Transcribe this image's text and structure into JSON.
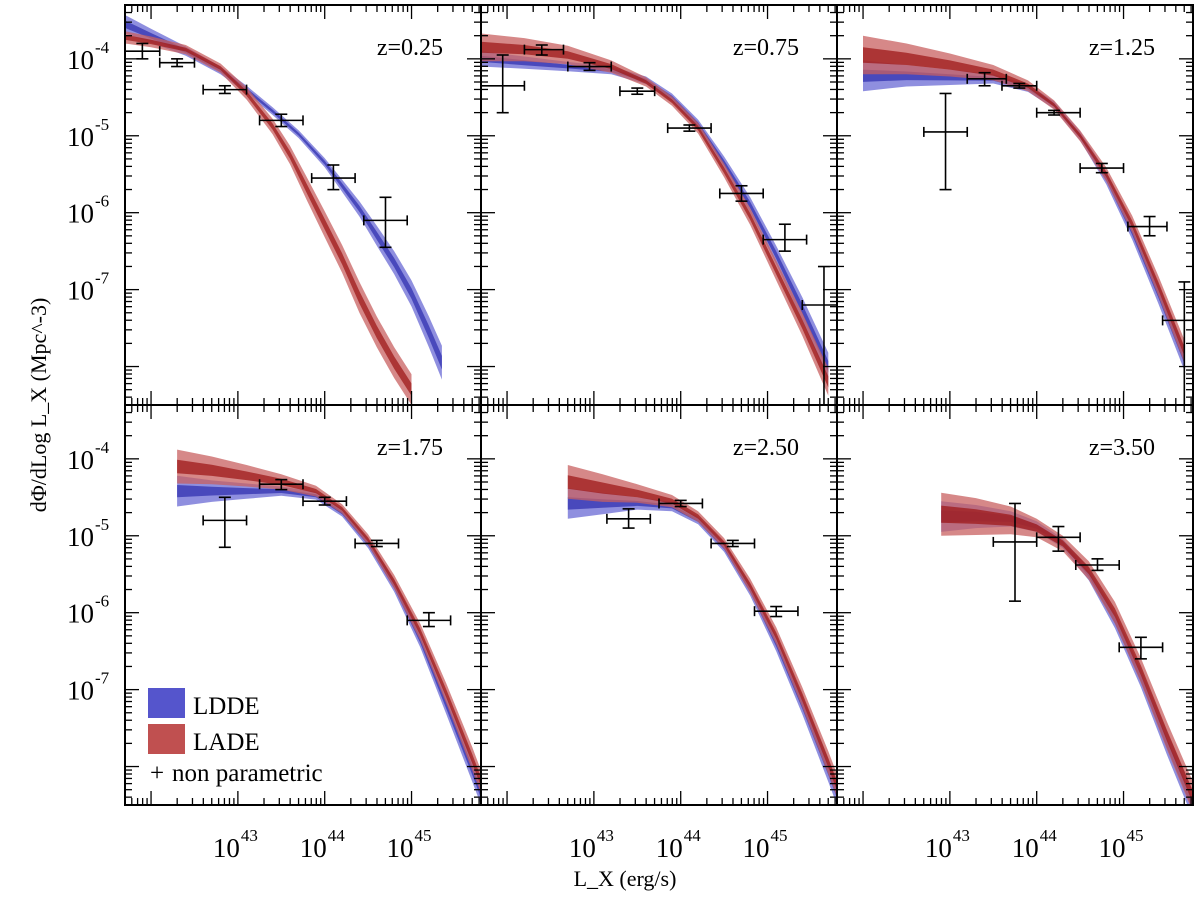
{
  "chart_data": {
    "type": "line",
    "title": "",
    "xlabel": "L_X (erg/s)",
    "ylabel": "dΦ/dLog L_X (Mpc^-3)",
    "xscale": "log",
    "yscale": "log",
    "xlim_log": [
      41.7,
      45.8
    ],
    "ylim_log": [
      -8.5,
      -3.3
    ],
    "x_tick_labels": [
      {
        "base": "10",
        "exp": "43",
        "logx": 43
      },
      {
        "base": "10",
        "exp": "44",
        "logx": 44
      },
      {
        "base": "10",
        "exp": "45",
        "logx": 45
      }
    ],
    "y_tick_labels": [
      {
        "base": "10",
        "exp": "-4",
        "logy": -4
      },
      {
        "base": "10",
        "exp": "-5",
        "logy": -5
      },
      {
        "base": "10",
        "exp": "-6",
        "logy": -6
      },
      {
        "base": "10",
        "exp": "-7",
        "logy": -7
      }
    ],
    "legend": {
      "position": "bottom-left of z=1.75 panel",
      "entries": [
        {
          "name": "LDDE",
          "color": "#5555cc"
        },
        {
          "name": "LADE",
          "color": "#c05050"
        },
        {
          "name": "non parametric",
          "marker": "+"
        }
      ]
    },
    "colors": {
      "ldde_band": "#6a6ad4",
      "ldde_core": "#3232b0",
      "lade_band": "#c86060",
      "lade_core": "#9e1a1a",
      "errorbar": "#000000"
    },
    "panels": [
      {
        "z_label": "z=0.25",
        "ldde": {
          "logL": [
            41.7,
            42.0,
            42.4,
            42.8,
            43.1,
            43.4,
            43.7,
            44.0,
            44.2,
            44.4,
            44.6,
            44.8,
            45.0,
            45.2,
            45.35
          ],
          "mid": [
            -3.55,
            -3.7,
            -3.9,
            -4.15,
            -4.4,
            -4.68,
            -4.98,
            -5.35,
            -5.65,
            -5.95,
            -6.3,
            -6.65,
            -7.05,
            -7.55,
            -7.95
          ],
          "err": [
            0.12,
            0.09,
            0.06,
            0.05,
            0.05,
            0.05,
            0.05,
            0.06,
            0.08,
            0.1,
            0.13,
            0.15,
            0.17,
            0.2,
            0.22
          ]
        },
        "lade": {
          "logL": [
            41.7,
            42.0,
            42.4,
            42.8,
            43.1,
            43.4,
            43.6,
            43.8,
            44.0,
            44.2,
            44.4,
            44.6,
            44.8,
            45.0
          ],
          "mid": [
            -3.72,
            -3.78,
            -3.88,
            -4.12,
            -4.45,
            -4.88,
            -5.25,
            -5.7,
            -6.15,
            -6.6,
            -7.1,
            -7.55,
            -7.95,
            -8.3
          ],
          "err": [
            0.08,
            0.07,
            0.06,
            0.06,
            0.08,
            0.1,
            0.12,
            0.15,
            0.17,
            0.18,
            0.2,
            0.2,
            0.2,
            0.2
          ]
        },
        "points": [
          {
            "logL": 41.9,
            "xlo": 41.7,
            "xhi": 42.1,
            "logy": -3.9,
            "ylo": -4.0,
            "yhi": -3.8
          },
          {
            "logL": 42.3,
            "xlo": 42.1,
            "xhi": 42.5,
            "logy": -4.05,
            "ylo": -4.1,
            "yhi": -4.0
          },
          {
            "logL": 42.85,
            "xlo": 42.6,
            "xhi": 43.1,
            "logy": -4.4,
            "ylo": -4.45,
            "yhi": -4.35
          },
          {
            "logL": 43.5,
            "xlo": 43.25,
            "xhi": 43.75,
            "logy": -4.8,
            "ylo": -4.88,
            "yhi": -4.72
          },
          {
            "logL": 44.1,
            "xlo": 43.85,
            "xhi": 44.35,
            "logy": -5.55,
            "ylo": -5.7,
            "yhi": -5.38
          },
          {
            "logL": 44.7,
            "xlo": 44.45,
            "xhi": 44.95,
            "logy": -6.1,
            "ylo": -6.45,
            "yhi": -5.8
          }
        ]
      },
      {
        "z_label": "z=0.75",
        "ldde": {
          "logL": [
            41.7,
            42.2,
            42.7,
            43.2,
            43.6,
            43.9,
            44.2,
            44.5,
            44.8,
            45.1,
            45.4,
            45.7
          ],
          "mid": [
            -4.0,
            -4.05,
            -4.1,
            -4.15,
            -4.28,
            -4.5,
            -4.85,
            -5.35,
            -5.9,
            -6.55,
            -7.25,
            -8.0
          ],
          "err": [
            0.1,
            0.08,
            0.06,
            0.05,
            0.05,
            0.05,
            0.06,
            0.08,
            0.1,
            0.12,
            0.15,
            0.18
          ]
        },
        "lade": {
          "logL": [
            41.7,
            42.2,
            42.7,
            43.2,
            43.6,
            43.9,
            44.2,
            44.5,
            44.8,
            45.1,
            45.4,
            45.7
          ],
          "mid": [
            -3.85,
            -3.88,
            -3.95,
            -4.1,
            -4.3,
            -4.55,
            -4.9,
            -5.45,
            -6.05,
            -6.75,
            -7.45,
            -8.2
          ],
          "err": [
            0.18,
            0.15,
            0.12,
            0.08,
            0.06,
            0.06,
            0.07,
            0.09,
            0.11,
            0.13,
            0.15,
            0.18
          ]
        },
        "points": [
          {
            "logL": 41.95,
            "xlo": 41.7,
            "xhi": 42.2,
            "logy": -4.35,
            "ylo": -4.7,
            "yhi": -3.95
          },
          {
            "logL": 42.4,
            "xlo": 42.2,
            "xhi": 42.65,
            "logy": -3.88,
            "ylo": -3.95,
            "yhi": -3.82
          },
          {
            "logL": 42.95,
            "xlo": 42.7,
            "xhi": 43.2,
            "logy": -4.1,
            "ylo": -4.15,
            "yhi": -4.05
          },
          {
            "logL": 43.5,
            "xlo": 43.3,
            "xhi": 43.7,
            "logy": -4.42,
            "ylo": -4.46,
            "yhi": -4.38
          },
          {
            "logL": 44.1,
            "xlo": 43.85,
            "xhi": 44.35,
            "logy": -4.9,
            "ylo": -4.94,
            "yhi": -4.86
          },
          {
            "logL": 44.7,
            "xlo": 44.45,
            "xhi": 44.95,
            "logy": -5.75,
            "ylo": -5.85,
            "yhi": -5.65
          },
          {
            "logL": 45.2,
            "xlo": 44.95,
            "xhi": 45.45,
            "logy": -6.35,
            "ylo": -6.5,
            "yhi": -6.15
          },
          {
            "logL": 45.65,
            "xlo": 45.4,
            "xhi": 45.8,
            "logy": -7.2,
            "ylo": -8.5,
            "yhi": -6.7
          }
        ]
      },
      {
        "z_label": "z=1.25",
        "ldde": {
          "logL": [
            42.0,
            42.5,
            43.0,
            43.5,
            43.9,
            44.2,
            44.5,
            44.8,
            45.1,
            45.4,
            45.7
          ],
          "mid": [
            -4.22,
            -4.22,
            -4.24,
            -4.26,
            -4.38,
            -4.6,
            -5.0,
            -5.55,
            -6.25,
            -7.05,
            -7.9
          ],
          "err": [
            0.2,
            0.14,
            0.1,
            0.06,
            0.05,
            0.05,
            0.06,
            0.08,
            0.1,
            0.13,
            0.15
          ]
        },
        "lade": {
          "logL": [
            42.0,
            42.5,
            43.0,
            43.5,
            43.9,
            44.2,
            44.5,
            44.8,
            45.1,
            45.4,
            45.7
          ],
          "mid": [
            -3.95,
            -4.0,
            -4.08,
            -4.18,
            -4.35,
            -4.6,
            -5.0,
            -5.5,
            -6.15,
            -6.95,
            -7.8
          ],
          "err": [
            0.25,
            0.2,
            0.15,
            0.1,
            0.07,
            0.06,
            0.07,
            0.09,
            0.11,
            0.13,
            0.15
          ]
        },
        "points": [
          {
            "logL": 42.95,
            "xlo": 42.7,
            "xhi": 43.2,
            "logy": -4.95,
            "ylo": -5.7,
            "yhi": -4.45
          },
          {
            "logL": 43.4,
            "xlo": 43.2,
            "xhi": 43.65,
            "logy": -4.26,
            "ylo": -4.35,
            "yhi": -4.18
          },
          {
            "logL": 43.8,
            "xlo": 43.6,
            "xhi": 44.0,
            "logy": -4.35,
            "ylo": -4.38,
            "yhi": -4.32
          },
          {
            "logL": 44.2,
            "xlo": 44.0,
            "xhi": 44.5,
            "logy": -4.7,
            "ylo": -4.73,
            "yhi": -4.67
          },
          {
            "logL": 44.75,
            "xlo": 44.5,
            "xhi": 45.0,
            "logy": -5.42,
            "ylo": -5.48,
            "yhi": -5.36
          },
          {
            "logL": 45.3,
            "xlo": 45.05,
            "xhi": 45.5,
            "logy": -6.18,
            "ylo": -6.3,
            "yhi": -6.05
          },
          {
            "logL": 45.7,
            "xlo": 45.45,
            "xhi": 45.8,
            "logy": -7.4,
            "ylo": -8.5,
            "yhi": -6.9
          }
        ]
      },
      {
        "z_label": "z=1.75",
        "ldde": {
          "logL": [
            42.3,
            42.7,
            43.1,
            43.5,
            43.9,
            44.2,
            44.5,
            44.8,
            45.1,
            45.4,
            45.7,
            45.8
          ],
          "mid": [
            -4.42,
            -4.42,
            -4.42,
            -4.42,
            -4.48,
            -4.7,
            -5.1,
            -5.65,
            -6.35,
            -7.2,
            -8.05,
            -8.35
          ],
          "err": [
            0.2,
            0.14,
            0.1,
            0.06,
            0.05,
            0.05,
            0.06,
            0.08,
            0.1,
            0.12,
            0.15,
            0.15
          ]
        },
        "lade": {
          "logL": [
            42.3,
            42.7,
            43.1,
            43.5,
            43.9,
            44.2,
            44.5,
            44.8,
            45.1,
            45.4,
            45.7,
            45.8
          ],
          "mid": [
            -4.1,
            -4.15,
            -4.22,
            -4.3,
            -4.42,
            -4.65,
            -5.05,
            -5.6,
            -6.25,
            -7.05,
            -7.9,
            -8.2
          ],
          "err": [
            0.22,
            0.18,
            0.14,
            0.1,
            0.07,
            0.06,
            0.07,
            0.09,
            0.11,
            0.13,
            0.15,
            0.15
          ]
        },
        "points": [
          {
            "logL": 42.85,
            "xlo": 42.6,
            "xhi": 43.1,
            "logy": -4.8,
            "ylo": -5.15,
            "yhi": -4.5
          },
          {
            "logL": 43.5,
            "xlo": 43.25,
            "xhi": 43.75,
            "logy": -4.33,
            "ylo": -4.4,
            "yhi": -4.27
          },
          {
            "logL": 44.0,
            "xlo": 43.75,
            "xhi": 44.25,
            "logy": -4.55,
            "ylo": -4.6,
            "yhi": -4.5
          },
          {
            "logL": 44.6,
            "xlo": 44.35,
            "xhi": 44.85,
            "logy": -5.1,
            "ylo": -5.14,
            "yhi": -5.06
          },
          {
            "logL": 45.2,
            "xlo": 44.95,
            "xhi": 45.45,
            "logy": -6.1,
            "ylo": -6.18,
            "yhi": -6.0
          }
        ]
      },
      {
        "z_label": "z=2.50",
        "ldde": {
          "logL": [
            42.7,
            43.1,
            43.5,
            43.9,
            44.2,
            44.5,
            44.8,
            45.1,
            45.4,
            45.7,
            45.8
          ],
          "mid": [
            -4.58,
            -4.58,
            -4.58,
            -4.62,
            -4.8,
            -5.15,
            -5.7,
            -6.4,
            -7.2,
            -8.05,
            -8.35
          ],
          "err": [
            0.2,
            0.14,
            0.08,
            0.06,
            0.05,
            0.06,
            0.08,
            0.1,
            0.12,
            0.15,
            0.15
          ]
        },
        "lade": {
          "logL": [
            42.7,
            43.1,
            43.5,
            43.9,
            44.2,
            44.5,
            44.8,
            45.1,
            45.4,
            45.7,
            45.8
          ],
          "mid": [
            -4.3,
            -4.38,
            -4.45,
            -4.55,
            -4.75,
            -5.1,
            -5.65,
            -6.3,
            -7.1,
            -7.95,
            -8.25
          ],
          "err": [
            0.22,
            0.18,
            0.12,
            0.08,
            0.07,
            0.07,
            0.09,
            0.11,
            0.13,
            0.15,
            0.15
          ]
        },
        "points": [
          {
            "logL": 43.4,
            "xlo": 43.15,
            "xhi": 43.65,
            "logy": -4.78,
            "ylo": -4.9,
            "yhi": -4.65
          },
          {
            "logL": 44.0,
            "xlo": 43.75,
            "xhi": 44.25,
            "logy": -4.58,
            "ylo": -4.62,
            "yhi": -4.54
          },
          {
            "logL": 44.6,
            "xlo": 44.35,
            "xhi": 44.85,
            "logy": -5.1,
            "ylo": -5.14,
            "yhi": -5.06
          },
          {
            "logL": 45.1,
            "xlo": 44.85,
            "xhi": 45.35,
            "logy": -5.98,
            "ylo": -6.05,
            "yhi": -5.92
          }
        ]
      },
      {
        "z_label": "z=3.50",
        "ldde": {
          "logL": [
            42.9,
            43.3,
            43.7,
            44.0,
            44.3,
            44.6,
            44.9,
            45.2,
            45.5,
            45.8
          ],
          "mid": [
            -4.75,
            -4.75,
            -4.78,
            -4.88,
            -5.1,
            -5.5,
            -6.1,
            -6.85,
            -7.7,
            -8.5
          ],
          "err": [
            0.2,
            0.15,
            0.1,
            0.07,
            0.06,
            0.08,
            0.1,
            0.12,
            0.15,
            0.18
          ]
        },
        "lade": {
          "logL": [
            42.9,
            43.3,
            43.7,
            44.0,
            44.3,
            44.6,
            44.9,
            45.2,
            45.5,
            45.8
          ],
          "mid": [
            -4.72,
            -4.75,
            -4.8,
            -4.9,
            -5.1,
            -5.45,
            -6.0,
            -6.75,
            -7.6,
            -8.4
          ],
          "err": [
            0.28,
            0.24,
            0.18,
            0.12,
            0.1,
            0.12,
            0.14,
            0.16,
            0.18,
            0.2
          ]
        },
        "points": [
          {
            "logL": 43.75,
            "xlo": 43.5,
            "xhi": 44.0,
            "logy": -5.08,
            "ylo": -5.85,
            "yhi": -4.58
          },
          {
            "logL": 44.25,
            "xlo": 44.0,
            "xhi": 44.5,
            "logy": -5.02,
            "ylo": -5.2,
            "yhi": -4.88
          },
          {
            "logL": 44.7,
            "xlo": 44.45,
            "xhi": 44.95,
            "logy": -5.38,
            "ylo": -5.45,
            "yhi": -5.3
          },
          {
            "logL": 45.2,
            "xlo": 44.95,
            "xhi": 45.45,
            "logy": -6.45,
            "ylo": -6.6,
            "yhi": -6.32
          }
        ]
      }
    ]
  }
}
